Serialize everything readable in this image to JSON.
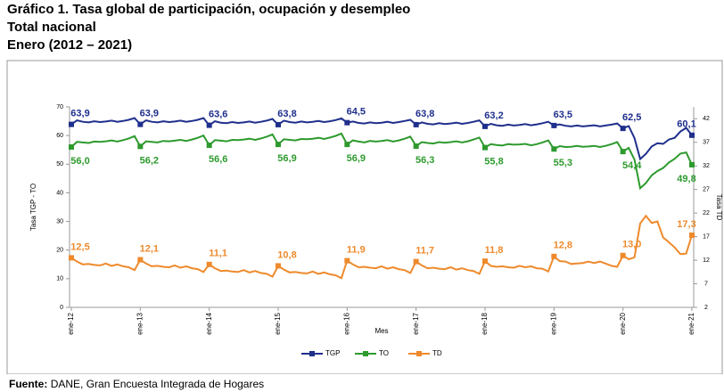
{
  "chart_data": {
    "type": "line",
    "title": "Gráfico 1. Tasa global de participación, ocupación y desempleo",
    "subtitle": "Total nacional",
    "period": "Enero (2012 – 2021)",
    "xlabel": "Mes",
    "ylabel": "Tasa TGP - TO",
    "y2label": "Tasa TD",
    "source_label": "Fuente:",
    "source_text": "DANE, Gran Encuesta Integrada de Hogares",
    "categories": [
      "ene-12",
      null,
      null,
      null,
      null,
      null,
      null,
      null,
      null,
      null,
      null,
      null,
      "ene-13",
      null,
      null,
      null,
      null,
      null,
      null,
      null,
      null,
      null,
      null,
      null,
      "ene-14",
      null,
      null,
      null,
      null,
      null,
      null,
      null,
      null,
      null,
      null,
      null,
      "ene-15",
      null,
      null,
      null,
      null,
      null,
      null,
      null,
      null,
      null,
      null,
      null,
      "ene-16",
      null,
      null,
      null,
      null,
      null,
      null,
      null,
      null,
      null,
      null,
      null,
      "ene-17",
      null,
      null,
      null,
      null,
      null,
      null,
      null,
      null,
      null,
      null,
      null,
      "ene-18",
      null,
      null,
      null,
      null,
      null,
      null,
      null,
      null,
      null,
      null,
      null,
      "ene-19",
      null,
      null,
      null,
      null,
      null,
      null,
      null,
      null,
      null,
      null,
      null,
      "ene-20",
      null,
      null,
      null,
      null,
      null,
      null,
      null,
      null,
      null,
      null,
      null,
      "ene-21"
    ],
    "ylim": [
      0,
      70
    ],
    "yticks": [
      0,
      10,
      20,
      30,
      40,
      50,
      60,
      70
    ],
    "y2lim": [
      2,
      44.5
    ],
    "y2ticks": [
      2,
      7,
      12,
      17,
      22,
      27,
      32,
      37,
      42
    ],
    "legend": "bottom",
    "series": [
      {
        "name": "TGP",
        "color": "#1f2f8c",
        "label_pos": "above",
        "values": [
          63.9,
          65.3,
          64.8,
          64.6,
          65.0,
          64.7,
          64.9,
          65.2,
          64.8,
          65.1,
          65.5,
          66.1,
          63.9,
          65.3,
          64.8,
          64.6,
          65.0,
          64.7,
          64.9,
          65.2,
          64.8,
          65.1,
          65.5,
          66.1,
          63.6,
          65.0,
          64.5,
          64.3,
          64.7,
          64.4,
          64.6,
          64.9,
          64.5,
          64.8,
          65.2,
          65.8,
          63.8,
          65.2,
          64.7,
          64.5,
          64.9,
          64.6,
          64.8,
          65.1,
          64.7,
          65.0,
          65.4,
          66.0,
          64.5,
          64.9,
          64.4,
          64.2,
          64.6,
          64.3,
          64.5,
          64.8,
          64.4,
          64.7,
          65.1,
          65.5,
          63.8,
          64.6,
          64.1,
          63.9,
          64.3,
          64.0,
          64.2,
          64.5,
          64.1,
          64.4,
          64.8,
          65.3,
          63.2,
          64.1,
          63.6,
          63.4,
          63.8,
          63.5,
          63.7,
          64.0,
          63.6,
          63.9,
          64.3,
          64.8,
          63.5,
          63.9,
          63.4,
          63.2,
          63.5,
          63.2,
          63.4,
          63.6,
          63.2,
          63.5,
          63.8,
          64.2,
          62.5,
          63.3,
          59.1,
          51.8,
          53.6,
          56.2,
          57.3,
          57.1,
          58.6,
          59.2,
          61.4,
          62.7,
          60.1
        ],
        "value_labels": [
          "63,9",
          null,
          null,
          null,
          null,
          null,
          null,
          null,
          null,
          null,
          null,
          null,
          "63,9",
          null,
          null,
          null,
          null,
          null,
          null,
          null,
          null,
          null,
          null,
          null,
          "63,6",
          null,
          null,
          null,
          null,
          null,
          null,
          null,
          null,
          null,
          null,
          null,
          "63,8",
          null,
          null,
          null,
          null,
          null,
          null,
          null,
          null,
          null,
          null,
          null,
          "64,5",
          null,
          null,
          null,
          null,
          null,
          null,
          null,
          null,
          null,
          null,
          null,
          "63,8",
          null,
          null,
          null,
          null,
          null,
          null,
          null,
          null,
          null,
          null,
          null,
          "63,2",
          null,
          null,
          null,
          null,
          null,
          null,
          null,
          null,
          null,
          null,
          null,
          "63,5",
          null,
          null,
          null,
          null,
          null,
          null,
          null,
          null,
          null,
          null,
          null,
          "62,5",
          null,
          null,
          null,
          null,
          null,
          null,
          null,
          null,
          null,
          null,
          null,
          "60,1"
        ]
      },
      {
        "name": "TO",
        "color": "#2e9a2e",
        "label_pos": "below",
        "values": [
          56.0,
          57.8,
          57.6,
          57.4,
          57.9,
          57.8,
          58.0,
          58.3,
          57.9,
          58.4,
          59.0,
          59.8,
          56.2,
          58.0,
          57.8,
          57.6,
          58.1,
          58.0,
          58.2,
          58.5,
          58.1,
          58.6,
          59.2,
          60.0,
          56.6,
          58.4,
          58.2,
          58.0,
          58.5,
          58.4,
          58.6,
          58.9,
          58.5,
          59.0,
          59.6,
          60.4,
          56.9,
          58.7,
          58.5,
          58.3,
          58.8,
          58.7,
          58.9,
          59.2,
          58.8,
          59.3,
          59.9,
          60.7,
          56.9,
          58.3,
          57.9,
          57.6,
          58.1,
          57.9,
          58.1,
          58.4,
          57.9,
          58.3,
          58.9,
          59.6,
          56.3,
          57.7,
          57.4,
          57.2,
          57.7,
          57.5,
          57.7,
          58.0,
          57.6,
          58.0,
          58.6,
          59.3,
          55.8,
          57.0,
          56.7,
          56.5,
          57.0,
          56.8,
          56.9,
          57.1,
          56.6,
          57.0,
          57.6,
          58.3,
          55.3,
          56.3,
          56.0,
          56.1,
          56.4,
          56.1,
          56.2,
          56.4,
          56.0,
          56.4,
          57.0,
          57.7,
          54.4,
          55.7,
          51.6,
          41.6,
          43.4,
          46.1,
          47.6,
          48.7,
          50.6,
          51.9,
          53.7,
          54.1,
          49.8
        ],
        "value_labels": [
          "56,0",
          null,
          null,
          null,
          null,
          null,
          null,
          null,
          null,
          null,
          null,
          null,
          "56,2",
          null,
          null,
          null,
          null,
          null,
          null,
          null,
          null,
          null,
          null,
          null,
          "56,6",
          null,
          null,
          null,
          null,
          null,
          null,
          null,
          null,
          null,
          null,
          null,
          "56,9",
          null,
          null,
          null,
          null,
          null,
          null,
          null,
          null,
          null,
          null,
          null,
          "56,9",
          null,
          null,
          null,
          null,
          null,
          null,
          null,
          null,
          null,
          null,
          null,
          "56,3",
          null,
          null,
          null,
          null,
          null,
          null,
          null,
          null,
          null,
          null,
          null,
          "55,8",
          null,
          null,
          null,
          null,
          null,
          null,
          null,
          null,
          null,
          null,
          null,
          "55,3",
          null,
          null,
          null,
          null,
          null,
          null,
          null,
          null,
          null,
          null,
          null,
          "54,4",
          null,
          null,
          null,
          null,
          null,
          null,
          null,
          null,
          null,
          null,
          null,
          "49,8"
        ]
      },
      {
        "name": "TD",
        "color": "#ee8a2c",
        "axis": "y2",
        "label_pos": "above",
        "values": [
          12.5,
          11.7,
          11.1,
          11.2,
          11.0,
          10.9,
          11.3,
          10.8,
          11.1,
          10.7,
          10.5,
          9.9,
          12.1,
          11.3,
          10.7,
          10.8,
          10.6,
          10.5,
          10.9,
          10.4,
          10.7,
          10.3,
          10.1,
          9.5,
          11.1,
          10.3,
          9.7,
          9.8,
          9.6,
          9.5,
          9.9,
          9.4,
          9.7,
          9.3,
          9.1,
          8.5,
          10.8,
          10.0,
          9.4,
          9.5,
          9.3,
          9.2,
          9.6,
          9.1,
          9.4,
          9.0,
          8.8,
          8.2,
          11.9,
          11.1,
          10.5,
          10.6,
          10.4,
          10.3,
          10.7,
          10.2,
          10.5,
          10.1,
          9.9,
          9.3,
          11.7,
          10.9,
          10.3,
          10.4,
          10.2,
          10.1,
          10.5,
          10.0,
          10.3,
          9.9,
          9.7,
          9.1,
          11.8,
          10.8,
          10.6,
          10.7,
          10.5,
          10.4,
          10.8,
          10.5,
          10.7,
          10.3,
          10.2,
          9.6,
          12.8,
          11.8,
          11.7,
          11.2,
          11.3,
          11.4,
          11.7,
          11.4,
          11.7,
          11.3,
          10.8,
          10.6,
          13.0,
          12.2,
          12.6,
          19.8,
          21.4,
          19.9,
          20.2,
          16.8,
          15.8,
          14.7,
          13.3,
          13.4,
          17.3
        ],
        "value_labels": [
          "12,5",
          null,
          null,
          null,
          null,
          null,
          null,
          null,
          null,
          null,
          null,
          null,
          "12,1",
          null,
          null,
          null,
          null,
          null,
          null,
          null,
          null,
          null,
          null,
          null,
          "11,1",
          null,
          null,
          null,
          null,
          null,
          null,
          null,
          null,
          null,
          null,
          null,
          "10,8",
          null,
          null,
          null,
          null,
          null,
          null,
          null,
          null,
          null,
          null,
          null,
          "11,9",
          null,
          null,
          null,
          null,
          null,
          null,
          null,
          null,
          null,
          null,
          null,
          "11,7",
          null,
          null,
          null,
          null,
          null,
          null,
          null,
          null,
          null,
          null,
          null,
          "11,8",
          null,
          null,
          null,
          null,
          null,
          null,
          null,
          null,
          null,
          null,
          null,
          "12,8",
          null,
          null,
          null,
          null,
          null,
          null,
          null,
          null,
          null,
          null,
          null,
          "13,0",
          null,
          null,
          null,
          null,
          null,
          null,
          null,
          null,
          null,
          null,
          null,
          "17,3"
        ]
      }
    ]
  }
}
